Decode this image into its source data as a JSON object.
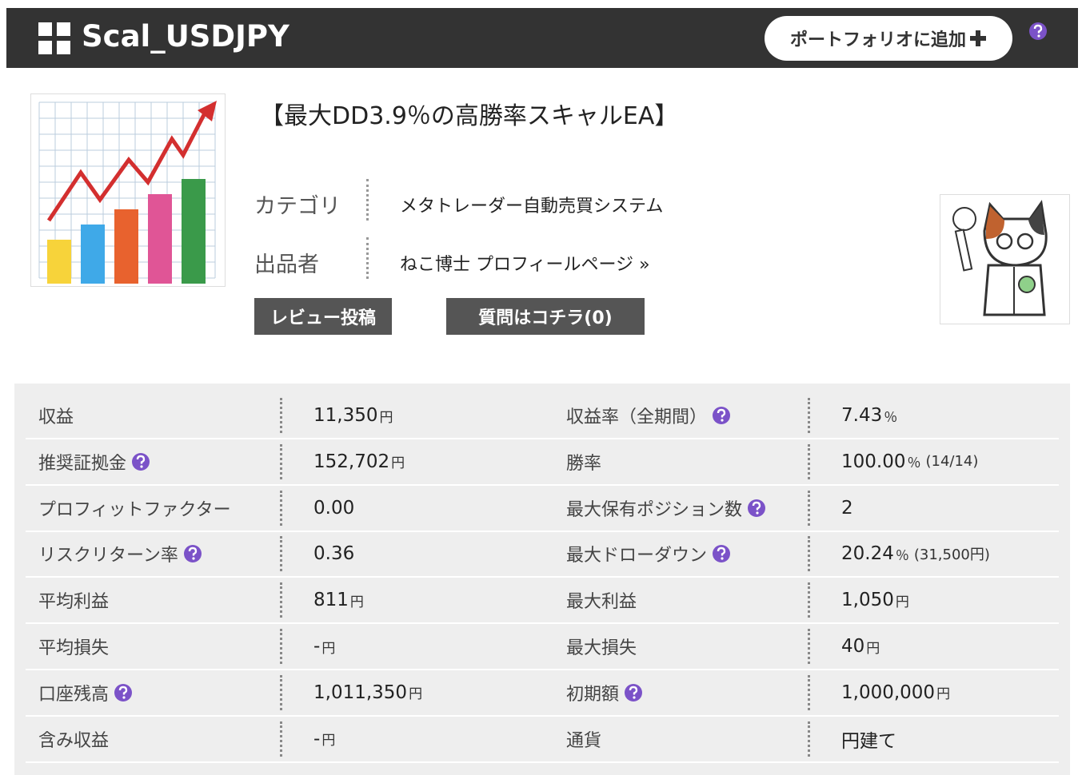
{
  "header": {
    "title": "Scal_USDJPY",
    "add_button": "ポートフォリオに追加"
  },
  "product": {
    "headline": "【最大DD3.9％の高勝率スキャルEA】",
    "info": [
      {
        "label": "カテゴリ",
        "value": "メタトレーダー自動売買システム"
      },
      {
        "label": "出品者",
        "value": "ねこ博士 プロフィールページ »"
      }
    ],
    "buttons": [
      "レビュー投稿",
      "質問はコチラ(0)"
    ]
  },
  "stats": {
    "rows": [
      {
        "left": {
          "label": "収益",
          "value": "11,350",
          "unit": "円"
        },
        "right": {
          "label": "収益率（全期間）",
          "help": true,
          "value": "7.43",
          "unit": "％"
        }
      },
      {
        "left": {
          "label": "推奨証拠金",
          "help": true,
          "value": "152,702",
          "unit": "円"
        },
        "right": {
          "label": "勝率",
          "value": "100.00",
          "unit": "％",
          "note": "(14/14)"
        }
      },
      {
        "left": {
          "label": "プロフィットファクター",
          "value": "0.00"
        },
        "right": {
          "label": "最大保有ポジション数",
          "help": true,
          "value": "2"
        }
      },
      {
        "left": {
          "label": "リスクリターン率",
          "help": true,
          "value": "0.36"
        },
        "right": {
          "label": "最大ドローダウン",
          "help": true,
          "value": "20.24",
          "unit": "％",
          "note": "(31,500円)"
        }
      },
      {
        "left": {
          "label": "平均利益",
          "value": "811",
          "unit": "円"
        },
        "right": {
          "label": "最大利益",
          "value": "1,050",
          "unit": "円"
        }
      },
      {
        "left": {
          "label": "平均損失",
          "value": "-",
          "unit": "円"
        },
        "right": {
          "label": "最大損失",
          "value": "40",
          "unit": "円"
        }
      },
      {
        "left": {
          "label": "口座残高",
          "help": true,
          "value": "1,011,350",
          "unit": "円"
        },
        "right": {
          "label": "初期額",
          "help": true,
          "value": "1,000,000",
          "unit": "円"
        }
      },
      {
        "left": {
          "label": "含み収益",
          "value": "-",
          "unit": "円"
        },
        "right": {
          "label": "通貨",
          "value": "円建て"
        }
      }
    ]
  }
}
